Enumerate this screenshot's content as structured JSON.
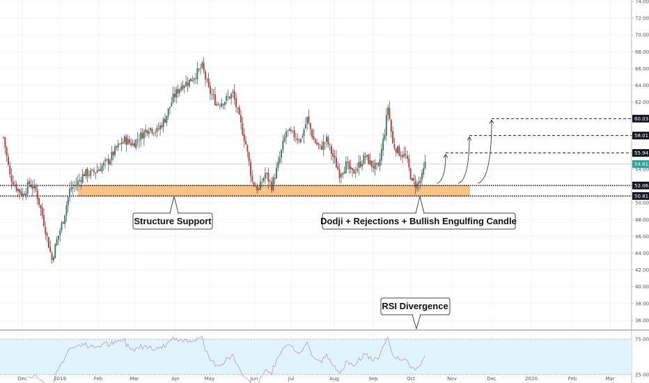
{
  "chart_data": {
    "type": "candlestick",
    "price_axis": {
      "ylim": [
        34.0,
        74.0
      ],
      "ticks": [
        "74.00",
        "72.00",
        "70.00",
        "68.00",
        "66.00",
        "64.00",
        "62.00",
        "60.00",
        "58.00",
        "56.00",
        "54.00",
        "52.00",
        "50.00",
        "48.00",
        "46.00",
        "44.00",
        "42.00",
        "40.00",
        "38.00",
        "36.00"
      ]
    },
    "rsi_axis": {
      "ylim": [
        15,
        85
      ],
      "ticks": [
        "75.00",
        "25.00"
      ],
      "band": [
        25,
        75
      ]
    },
    "time_axis": {
      "labels": [
        "Dec",
        "2019",
        "Feb",
        "Mar",
        "Apr",
        "May",
        "Jun",
        "Jul",
        "Aug",
        "Sep",
        "Oct",
        "Nov",
        "Dec",
        "2020",
        "Feb",
        "Mar"
      ]
    },
    "levels": [
      {
        "value": 60.03,
        "label": "60.03",
        "style": "dashed"
      },
      {
        "value": 58.01,
        "label": "58.01",
        "style": "dashed"
      },
      {
        "value": 55.94,
        "label": "55.94",
        "style": "dashed"
      },
      {
        "value": 54.61,
        "label": "54.61",
        "style": "current"
      },
      {
        "value": 52.06,
        "label": "52.06",
        "style": "dotted"
      },
      {
        "value": 50.81,
        "label": "50.81",
        "style": "dotted"
      }
    ],
    "support_zone": {
      "from": 50.81,
      "to": 52.06
    },
    "annotations": [
      {
        "text": "Structure Support"
      },
      {
        "text": "Dodji + Rejections + Bullish Engulfing Candle"
      },
      {
        "text": "RSI Divergence"
      }
    ],
    "anchors": [
      {
        "t": 0,
        "p": 57.8
      },
      {
        "t": 4,
        "p": 53.2
      },
      {
        "t": 8,
        "p": 51.8
      },
      {
        "t": 12,
        "p": 51.0
      },
      {
        "t": 16,
        "p": 52.3
      },
      {
        "t": 20,
        "p": 51.5
      },
      {
        "t": 24,
        "p": 48.5
      },
      {
        "t": 28,
        "p": 45.0
      },
      {
        "t": 30,
        "p": 43.2
      },
      {
        "t": 33,
        "p": 45.5
      },
      {
        "t": 37,
        "p": 48.0
      },
      {
        "t": 41,
        "p": 51.5
      },
      {
        "t": 45,
        "p": 52.2
      },
      {
        "t": 50,
        "p": 53.5
      },
      {
        "t": 55,
        "p": 53.5
      },
      {
        "t": 60,
        "p": 54.2
      },
      {
        "t": 65,
        "p": 55.0
      },
      {
        "t": 70,
        "p": 56.5
      },
      {
        "t": 75,
        "p": 57.5
      },
      {
        "t": 80,
        "p": 57.0
      },
      {
        "t": 85,
        "p": 58.0
      },
      {
        "t": 90,
        "p": 59.0
      },
      {
        "t": 95,
        "p": 58.5
      },
      {
        "t": 100,
        "p": 60.0
      },
      {
        "t": 105,
        "p": 62.5
      },
      {
        "t": 110,
        "p": 64.0
      },
      {
        "t": 115,
        "p": 64.5
      },
      {
        "t": 120,
        "p": 65.5
      },
      {
        "t": 123,
        "p": 66.2
      },
      {
        "t": 127,
        "p": 63.5
      },
      {
        "t": 132,
        "p": 61.8
      },
      {
        "t": 137,
        "p": 62.2
      },
      {
        "t": 142,
        "p": 63.0
      },
      {
        "t": 146,
        "p": 60.0
      },
      {
        "t": 150,
        "p": 57.0
      },
      {
        "t": 154,
        "p": 52.5
      },
      {
        "t": 158,
        "p": 51.5
      },
      {
        "t": 162,
        "p": 53.5
      },
      {
        "t": 166,
        "p": 52.0
      },
      {
        "t": 170,
        "p": 54.5
      },
      {
        "t": 175,
        "p": 58.5
      },
      {
        "t": 180,
        "p": 58.0
      },
      {
        "t": 184,
        "p": 57.5
      },
      {
        "t": 188,
        "p": 60.0
      },
      {
        "t": 192,
        "p": 57.5
      },
      {
        "t": 196,
        "p": 56.5
      },
      {
        "t": 200,
        "p": 57.5
      },
      {
        "t": 204,
        "p": 55.5
      },
      {
        "t": 208,
        "p": 53.5
      },
      {
        "t": 212,
        "p": 54.5
      },
      {
        "t": 216,
        "p": 53.5
      },
      {
        "t": 220,
        "p": 54.5
      },
      {
        "t": 224,
        "p": 55.5
      },
      {
        "t": 228,
        "p": 54.5
      },
      {
        "t": 232,
        "p": 54.0
      },
      {
        "t": 236,
        "p": 58.5
      },
      {
        "t": 238,
        "p": 61.5
      },
      {
        "t": 241,
        "p": 57.0
      },
      {
        "t": 245,
        "p": 56.0
      },
      {
        "t": 249,
        "p": 55.5
      },
      {
        "t": 253,
        "p": 52.5
      },
      {
        "t": 256,
        "p": 52.1
      },
      {
        "t": 259,
        "p": 53.0
      },
      {
        "t": 261,
        "p": 54.6
      }
    ]
  }
}
